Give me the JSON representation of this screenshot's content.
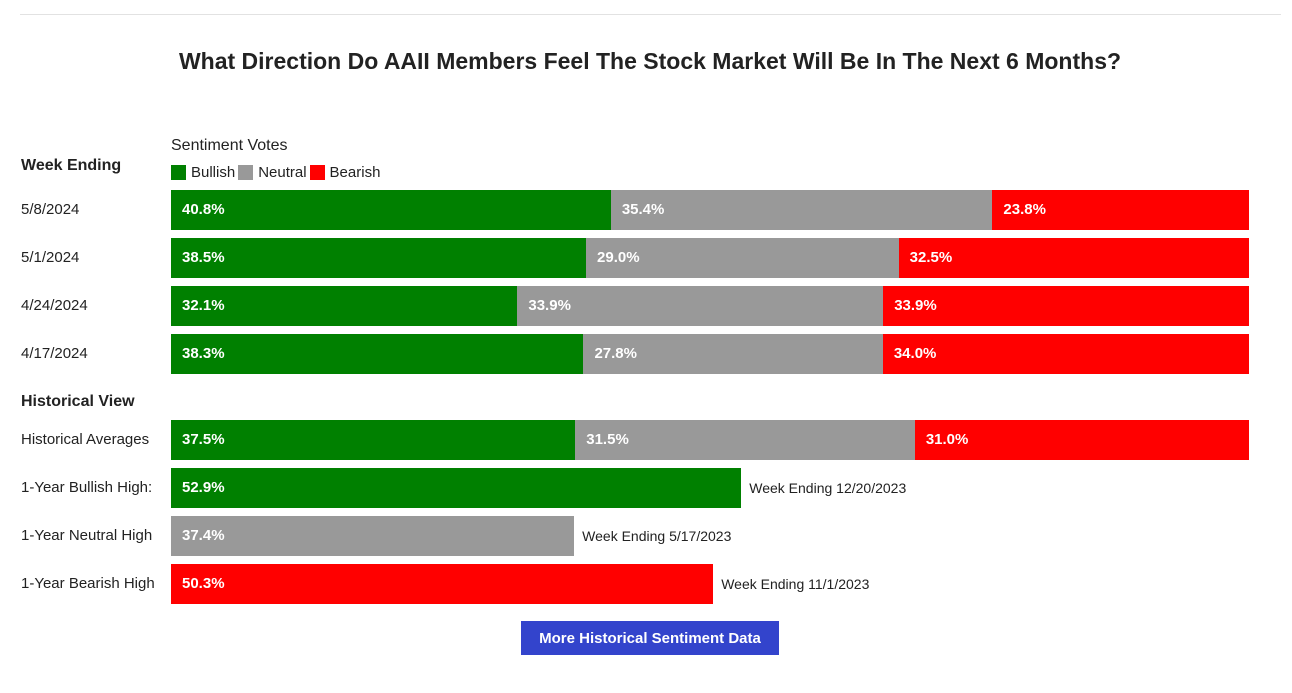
{
  "title": "What Direction Do AAII Members Feel The Stock Market Will Be In The Next 6 Months?",
  "colors": {
    "bullish": "#008000",
    "neutral": "#999999",
    "bearish": "#ff0000",
    "button": "#3344cc"
  },
  "chart_data": {
    "type": "bar",
    "orientation": "horizontal-stacked",
    "legend_title": "Sentiment Votes",
    "legend": [
      "Bullish",
      "Neutral",
      "Bearish"
    ],
    "week_ending_header": "Week Ending",
    "weeks": [
      {
        "label": "5/8/2024",
        "bullish": 40.8,
        "neutral": 35.4,
        "bearish": 23.8,
        "bullish_text": "40.8%",
        "neutral_text": "35.4%",
        "bearish_text": "23.8%"
      },
      {
        "label": "5/1/2024",
        "bullish": 38.5,
        "neutral": 29.0,
        "bearish": 32.5,
        "bullish_text": "38.5%",
        "neutral_text": "29.0%",
        "bearish_text": "32.5%"
      },
      {
        "label": "4/24/2024",
        "bullish": 32.1,
        "neutral": 33.9,
        "bearish": 33.9,
        "bullish_text": "32.1%",
        "neutral_text": "33.9%",
        "bearish_text": "33.9%"
      },
      {
        "label": "4/17/2024",
        "bullish": 38.3,
        "neutral": 27.8,
        "bearish": 34.0,
        "bullish_text": "38.3%",
        "neutral_text": "27.8%",
        "bearish_text": "34.0%"
      }
    ],
    "historical_header": "Historical View",
    "historical_average": {
      "label": "Historical Averages",
      "bullish": 37.5,
      "neutral": 31.5,
      "bearish": 31.0,
      "bullish_text": "37.5%",
      "neutral_text": "31.5%",
      "bearish_text": "31.0%"
    },
    "highs": [
      {
        "label": "1-Year Bullish High:",
        "series": "bullish",
        "value": 52.9,
        "text": "52.9%",
        "note": "Week Ending 12/20/2023"
      },
      {
        "label": "1-Year Neutral High",
        "series": "neutral",
        "value": 37.4,
        "text": "37.4%",
        "note": "Week Ending 5/17/2023"
      },
      {
        "label": "1-Year Bearish High",
        "series": "bearish",
        "value": 50.3,
        "text": "50.3%",
        "note": "Week Ending 11/1/2023"
      }
    ]
  },
  "button": {
    "label": "More Historical Sentiment Data"
  }
}
